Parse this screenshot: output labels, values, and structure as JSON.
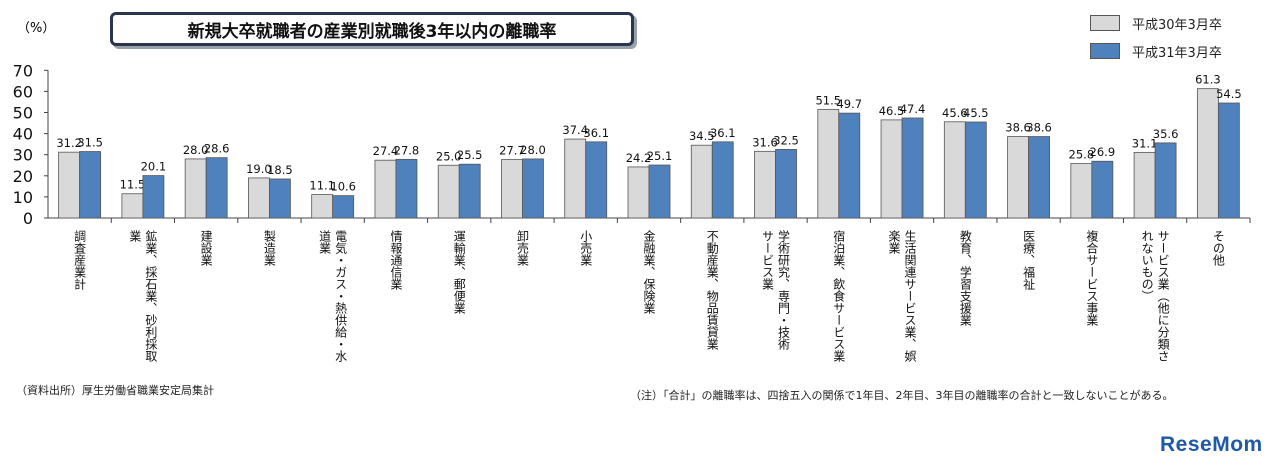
{
  "title": "新規大卒就職者の産業別就職後3年以内の離職率",
  "unit": "（%）",
  "legend": [
    {
      "label": "平成30年3月卒",
      "color": "#d9d9d9"
    },
    {
      "label": "平成31年3月卒",
      "color": "#4f81bd"
    }
  ],
  "chart_data": {
    "type": "bar",
    "ylim": [
      0,
      70
    ],
    "yticks": [
      0,
      10,
      20,
      30,
      40,
      50,
      60,
      70
    ],
    "grid": false,
    "legend_position": "top-right",
    "categories": [
      [
        "調査産業計"
      ],
      [
        "鉱業、採石業、砂利採取",
        "業"
      ],
      [
        "建設業"
      ],
      [
        "製造業"
      ],
      [
        "電気・ガス・熱供給・水",
        "道業"
      ],
      [
        "情報通信業"
      ],
      [
        "運輸業、郵便業"
      ],
      [
        "卸売業"
      ],
      [
        "小売業"
      ],
      [
        "金融業、保険業"
      ],
      [
        "不動産業、物品賃貸業"
      ],
      [
        "学術研究、専門・技術",
        "サービス業"
      ],
      [
        "宿泊業、飲食サービス業"
      ],
      [
        "生活関連サービス業、娯",
        "楽業"
      ],
      [
        "教育、学習支援業"
      ],
      [
        "医療、福祉"
      ],
      [
        "複合サービス事業"
      ],
      [
        "サービス業（他に分類さ",
        "れないもの）"
      ],
      [
        "その他"
      ]
    ],
    "series": [
      {
        "name": "平成30年3月卒",
        "values": [
          31.2,
          11.5,
          28.0,
          19.0,
          11.1,
          27.4,
          25.0,
          27.7,
          37.4,
          24.2,
          34.5,
          31.6,
          51.5,
          46.5,
          45.6,
          38.6,
          25.8,
          31.1,
          61.3
        ]
      },
      {
        "name": "平成31年3月卒",
        "values": [
          31.5,
          20.1,
          28.6,
          18.5,
          10.6,
          27.8,
          25.5,
          28.0,
          36.1,
          25.1,
          36.1,
          32.5,
          49.7,
          47.4,
          45.5,
          38.6,
          26.9,
          35.6,
          54.5
        ]
      }
    ]
  },
  "footer_left": "（資料出所）厚生労働省職業安定局集計",
  "footer_right": "（注）「合計」の離職率は、四捨五入の関係で1年目、2年目、3年目の離職率の合計と一致しないことがある。",
  "logo": "ReseMom"
}
